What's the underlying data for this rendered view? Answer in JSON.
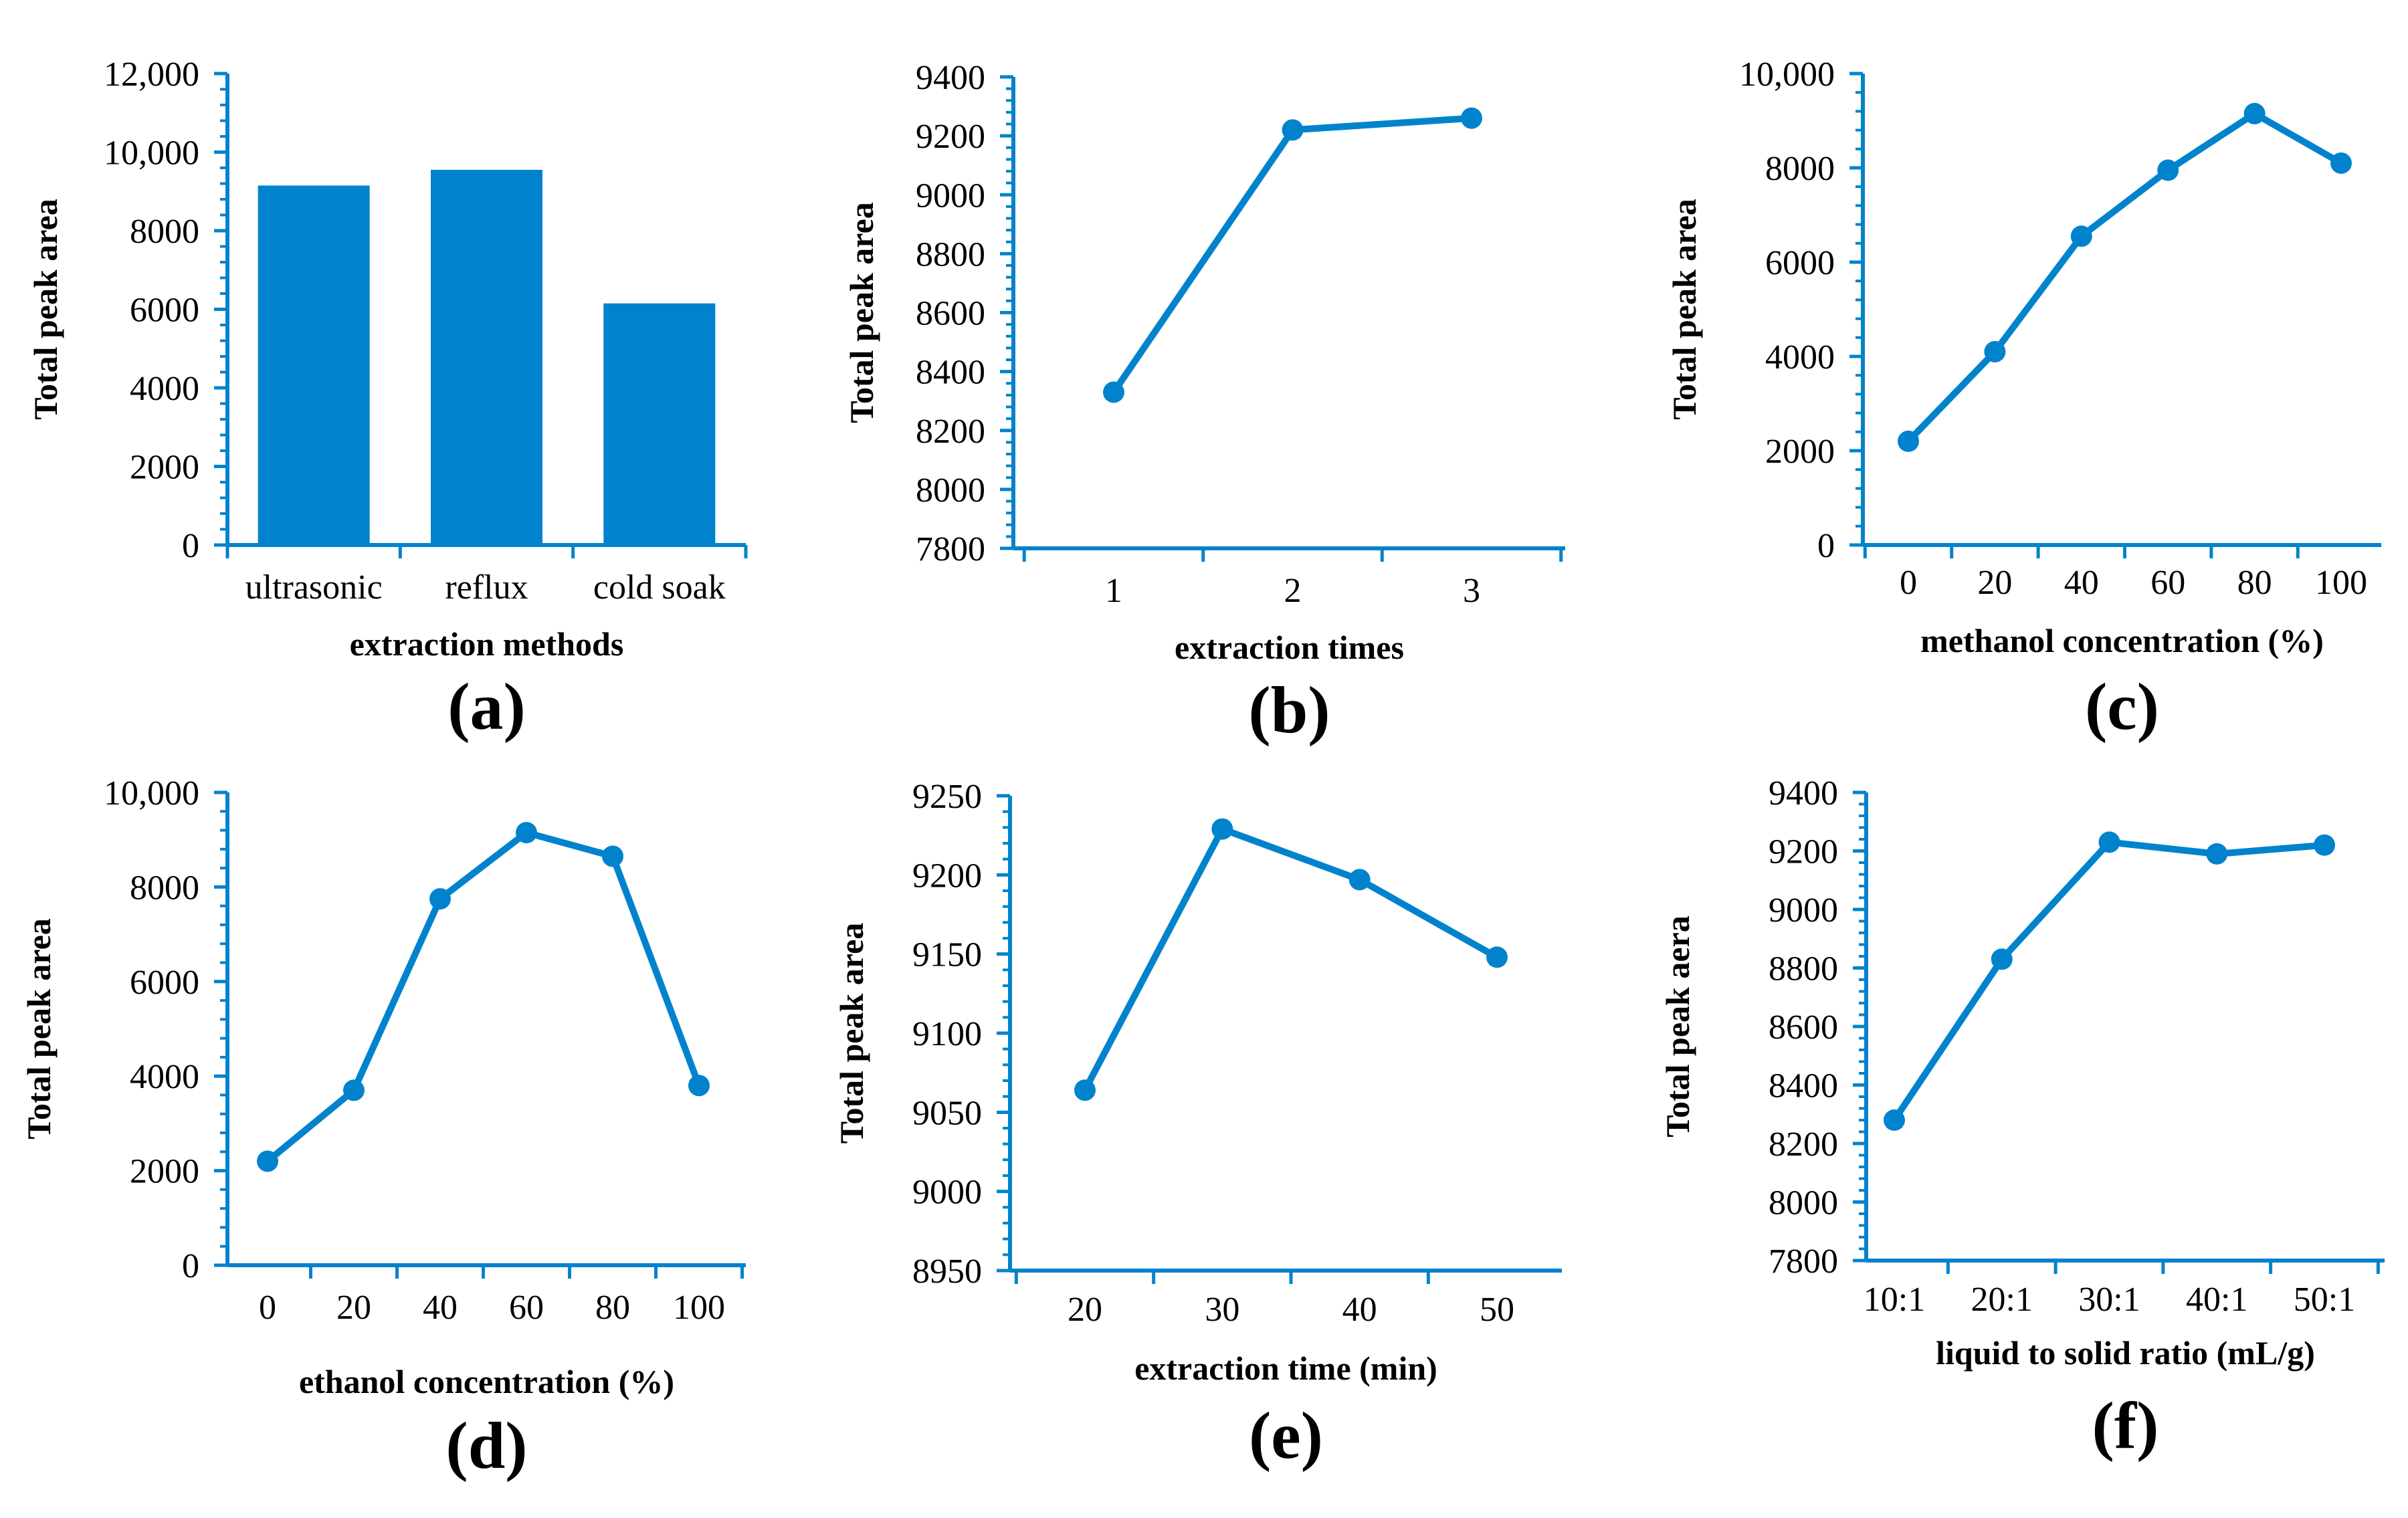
{
  "accent_color": "#0083CC",
  "chart_data": [
    {
      "type": "bar",
      "panel": "(a)",
      "categories": [
        "ultrasonic",
        "reflux",
        "cold soak"
      ],
      "values": [
        9150,
        9550,
        6150
      ],
      "xlabel": "extraction methods",
      "ylabel": "Total  peak  area",
      "ylim": [
        0,
        12000
      ],
      "yticks": [
        0,
        2000,
        4000,
        6000,
        8000,
        10000,
        12000
      ],
      "ytick_labels": [
        "0",
        "2000",
        "4000",
        "6000",
        "8000",
        "10,000",
        "12,000"
      ]
    },
    {
      "type": "line",
      "panel": "(b)",
      "x": [
        1,
        2,
        3
      ],
      "xtick_labels": [
        "1",
        "2",
        "3"
      ],
      "values": [
        8330,
        9220,
        9260
      ],
      "xlabel": "extraction  times",
      "ylabel": "Total  peak  area",
      "ylim": [
        7800,
        9400
      ],
      "yticks": [
        7800,
        8000,
        8200,
        8400,
        8600,
        8800,
        9000,
        9200,
        9400
      ],
      "ytick_labels": [
        "7800",
        "8000",
        "8200",
        "8400",
        "8600",
        "8800",
        "9000",
        "9200",
        "9400"
      ]
    },
    {
      "type": "line",
      "panel": "(c)",
      "x": [
        0,
        20,
        40,
        60,
        80,
        100
      ],
      "xtick_labels": [
        "0",
        "20",
        "40",
        "60",
        "80",
        "100"
      ],
      "values": [
        2200,
        4100,
        6550,
        7950,
        9150,
        8100
      ],
      "xlabel": "methanol  concentration  (%)",
      "ylabel": "Total  peak  area",
      "ylim": [
        0,
        10000
      ],
      "yticks": [
        0,
        2000,
        4000,
        6000,
        8000,
        10000
      ],
      "ytick_labels": [
        "0",
        "2000",
        "4000",
        "6000",
        "8000",
        "10,000"
      ]
    },
    {
      "type": "line",
      "panel": "(d)",
      "x": [
        0,
        20,
        40,
        60,
        80,
        100
      ],
      "xtick_labels": [
        "0",
        "20",
        "40",
        "60",
        "80",
        "100"
      ],
      "values": [
        2200,
        3700,
        7750,
        9150,
        8650,
        3800
      ],
      "xlabel": "ethanol  concentration  (%)",
      "ylabel": "Total  peak  area",
      "ylim": [
        0,
        10000
      ],
      "yticks": [
        0,
        2000,
        4000,
        6000,
        8000,
        10000
      ],
      "ytick_labels": [
        "0",
        "2000",
        "4000",
        "6000",
        "8000",
        "10,000"
      ]
    },
    {
      "type": "line",
      "panel": "(e)",
      "x": [
        20,
        30,
        40,
        50
      ],
      "xtick_labels": [
        "20",
        "30",
        "40",
        "50"
      ],
      "values": [
        9064,
        9229,
        9197,
        9148
      ],
      "xlabel": "extraction  time (min)",
      "ylabel": "Total  peak  area",
      "ylim": [
        8950,
        9250
      ],
      "yticks": [
        8950,
        9000,
        9050,
        9100,
        9150,
        9200,
        9250
      ],
      "ytick_labels": [
        "8950",
        "9000",
        "9050",
        "9100",
        "9150",
        "9200",
        "9250"
      ]
    },
    {
      "type": "line",
      "panel": "(f)",
      "x": [
        1,
        2,
        3,
        4,
        5
      ],
      "xtick_labels": [
        "10:1",
        "20:1",
        "30:1",
        "40:1",
        "50:1"
      ],
      "values": [
        8280,
        8830,
        9230,
        9190,
        9220
      ],
      "xlabel": "liquid  to  solid  ratio  (mL/g)",
      "ylabel": "Total  peak  aera",
      "ylim": [
        7800,
        9400
      ],
      "yticks": [
        7800,
        8000,
        8200,
        8400,
        8600,
        8800,
        9000,
        9200,
        9400
      ],
      "ytick_labels": [
        "7800",
        "8000",
        "8200",
        "8400",
        "8600",
        "8800",
        "9000",
        "9200",
        "9400"
      ]
    }
  ]
}
